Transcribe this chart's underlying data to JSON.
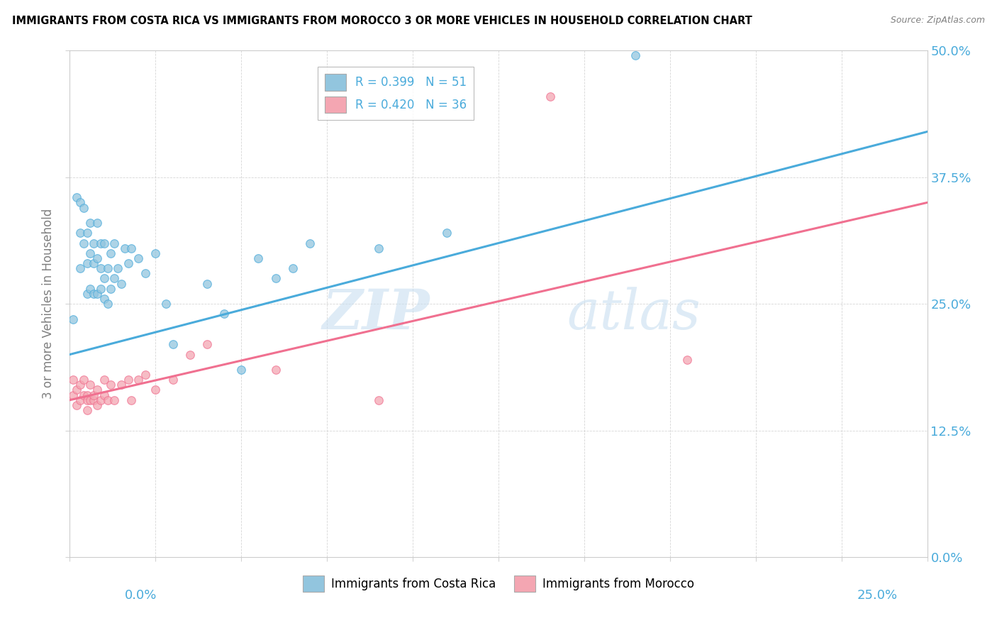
{
  "title": "IMMIGRANTS FROM COSTA RICA VS IMMIGRANTS FROM MOROCCO 3 OR MORE VEHICLES IN HOUSEHOLD CORRELATION CHART",
  "source": "Source: ZipAtlas.com",
  "ylabel": "3 or more Vehicles in Household",
  "legend_r1": "R = 0.399",
  "legend_n1": "N = 51",
  "legend_r2": "R = 0.420",
  "legend_n2": "N = 36",
  "color_blue": "#92C5DE",
  "color_pink": "#F4A6B2",
  "line_blue": "#4AABDB",
  "line_pink": "#F07090",
  "xmin": 0.0,
  "xmax": 0.25,
  "ymin": 0.0,
  "ymax": 0.5,
  "blue_line_y0": 0.2,
  "blue_line_y1": 0.42,
  "pink_line_y0": 0.155,
  "pink_line_y1": 0.35,
  "costa_rica_x": [
    0.001,
    0.002,
    0.003,
    0.003,
    0.003,
    0.004,
    0.004,
    0.005,
    0.005,
    0.005,
    0.006,
    0.006,
    0.006,
    0.007,
    0.007,
    0.007,
    0.008,
    0.008,
    0.008,
    0.009,
    0.009,
    0.009,
    0.01,
    0.01,
    0.01,
    0.011,
    0.011,
    0.012,
    0.012,
    0.013,
    0.013,
    0.014,
    0.015,
    0.016,
    0.017,
    0.018,
    0.02,
    0.022,
    0.025,
    0.028,
    0.03,
    0.04,
    0.045,
    0.05,
    0.055,
    0.06,
    0.065,
    0.07,
    0.09,
    0.11,
    0.165
  ],
  "costa_rica_y": [
    0.235,
    0.355,
    0.32,
    0.35,
    0.285,
    0.31,
    0.345,
    0.29,
    0.32,
    0.26,
    0.3,
    0.33,
    0.265,
    0.29,
    0.31,
    0.26,
    0.295,
    0.33,
    0.26,
    0.285,
    0.31,
    0.265,
    0.275,
    0.31,
    0.255,
    0.285,
    0.25,
    0.3,
    0.265,
    0.31,
    0.275,
    0.285,
    0.27,
    0.305,
    0.29,
    0.305,
    0.295,
    0.28,
    0.3,
    0.25,
    0.21,
    0.27,
    0.24,
    0.185,
    0.295,
    0.275,
    0.285,
    0.31,
    0.305,
    0.32,
    0.495
  ],
  "morocco_x": [
    0.001,
    0.001,
    0.002,
    0.002,
    0.003,
    0.003,
    0.004,
    0.004,
    0.005,
    0.005,
    0.005,
    0.006,
    0.006,
    0.007,
    0.007,
    0.008,
    0.008,
    0.009,
    0.01,
    0.01,
    0.011,
    0.012,
    0.013,
    0.015,
    0.017,
    0.018,
    0.02,
    0.022,
    0.025,
    0.03,
    0.035,
    0.04,
    0.06,
    0.09,
    0.14,
    0.18
  ],
  "morocco_y": [
    0.175,
    0.16,
    0.165,
    0.15,
    0.17,
    0.155,
    0.16,
    0.175,
    0.16,
    0.145,
    0.155,
    0.155,
    0.17,
    0.155,
    0.16,
    0.15,
    0.165,
    0.155,
    0.16,
    0.175,
    0.155,
    0.17,
    0.155,
    0.17,
    0.175,
    0.155,
    0.175,
    0.18,
    0.165,
    0.175,
    0.2,
    0.21,
    0.185,
    0.155,
    0.455,
    0.195
  ]
}
